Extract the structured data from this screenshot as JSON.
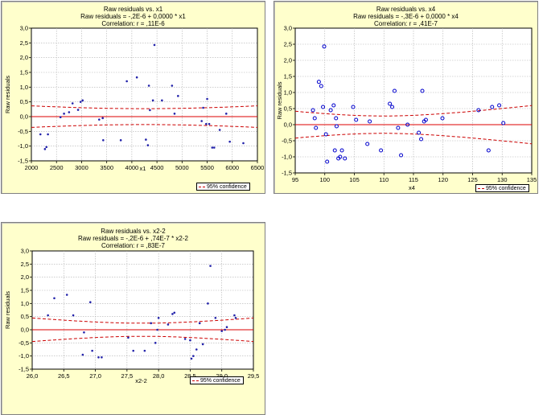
{
  "chart_data": [
    {
      "type": "scatter",
      "title": "Raw residuals vs. x1",
      "subtitle": "Raw residuals = -,2E-6 + 0,0000 * x1",
      "correlation": "Correlation: r = ,11E-6",
      "xlabel": "x1",
      "ylabel": "Raw residuals",
      "xlim": [
        2000,
        6500
      ],
      "ylim": [
        -1.5,
        3.0
      ],
      "xticks": [
        "2000",
        "2500",
        "3000",
        "3500",
        "4000",
        "4500",
        "5000",
        "5500",
        "6000",
        "6500"
      ],
      "xtick_values": [
        2000,
        2500,
        3000,
        3500,
        4000,
        4500,
        5000,
        5500,
        6000,
        6500
      ],
      "yticks": [
        "-1,5",
        "-1,0",
        "-0,5",
        "0,0",
        "0,5",
        "1,0",
        "1,5",
        "2,0",
        "2,5",
        "3,0"
      ],
      "ytick_values": [
        -1.5,
        -1.0,
        -0.5,
        0.0,
        0.5,
        1.0,
        1.5,
        2.0,
        2.5,
        3.0
      ],
      "grid": true,
      "legend": "95% confidence",
      "legend_position": "bottom-right",
      "fit": {
        "intercept": 0.0,
        "slope": 0.0
      },
      "band": {
        "x0": 4250,
        "y0": 0.27,
        "k": 1.2e-08
      },
      "points": [
        [
          2180,
          -0.6
        ],
        [
          2270,
          -1.1
        ],
        [
          2300,
          -1.03
        ],
        [
          2330,
          -0.6
        ],
        [
          2580,
          -0.02
        ],
        [
          2650,
          0.1
        ],
        [
          2750,
          0.15
        ],
        [
          2820,
          0.45
        ],
        [
          2930,
          0.23
        ],
        [
          2980,
          0.5
        ],
        [
          3020,
          0.55
        ],
        [
          3350,
          -0.1
        ],
        [
          3420,
          -0.05
        ],
        [
          3430,
          -0.8
        ],
        [
          3780,
          -0.8
        ],
        [
          3900,
          1.2
        ],
        [
          4100,
          1.33
        ],
        [
          4280,
          -0.78
        ],
        [
          4320,
          -0.97
        ],
        [
          4340,
          1.05
        ],
        [
          4360,
          0.22
        ],
        [
          4420,
          0.55
        ],
        [
          4450,
          2.43
        ],
        [
          4600,
          0.55
        ],
        [
          4800,
          1.05
        ],
        [
          4850,
          0.1
        ],
        [
          4920,
          0.7
        ],
        [
          5390,
          -0.15
        ],
        [
          5420,
          0.3
        ],
        [
          5480,
          -0.25
        ],
        [
          5500,
          0.6
        ],
        [
          5540,
          -0.25
        ],
        [
          5600,
          -1.05
        ],
        [
          5640,
          -1.05
        ],
        [
          5750,
          -0.45
        ],
        [
          5880,
          0.1
        ],
        [
          5950,
          -0.85
        ],
        [
          6220,
          -0.9
        ]
      ]
    },
    {
      "type": "scatter",
      "title": "Raw residuals vs. x4",
      "subtitle": "Raw residuals = -,3E-6 + 0,0000 * x4",
      "correlation": "Correlation: r = ,41E-7",
      "xlabel": "x4",
      "ylabel": "Raw residuals",
      "xlim": [
        95,
        135
      ],
      "ylim": [
        -1.5,
        3.0
      ],
      "xticks": [
        "95",
        "100",
        "105",
        "110",
        "115",
        "120",
        "125",
        "130",
        "135"
      ],
      "xtick_values": [
        95,
        100,
        105,
        110,
        115,
        120,
        125,
        130,
        135
      ],
      "yticks": [
        "-1,5",
        "-1,0",
        "-0,5",
        "0,0",
        "0,5",
        "1,0",
        "1,5",
        "2,0",
        "2,5",
        "3,0"
      ],
      "ytick_values": [
        -1.5,
        -1.0,
        -0.5,
        0.0,
        0.5,
        1.0,
        1.5,
        2.0,
        2.5,
        3.0
      ],
      "grid": true,
      "legend": "95% confidence",
      "legend_position": "bottom-right",
      "fit": {
        "intercept": 0.0,
        "slope": 0.0
      },
      "band": {
        "x0": 110,
        "y0": 0.27,
        "k": 0.00045
      },
      "points": [
        [
          98.0,
          0.45
        ],
        [
          98.3,
          0.2
        ],
        [
          98.5,
          -0.1
        ],
        [
          99.0,
          1.33
        ],
        [
          99.4,
          1.2
        ],
        [
          99.7,
          0.55
        ],
        [
          99.9,
          2.43
        ],
        [
          100.2,
          -0.3
        ],
        [
          100.4,
          -1.15
        ],
        [
          101.0,
          0.45
        ],
        [
          101.5,
          0.6
        ],
        [
          101.7,
          -0.8
        ],
        [
          101.9,
          0.2
        ],
        [
          102.0,
          -0.05
        ],
        [
          102.3,
          -1.05
        ],
        [
          102.6,
          -1.0
        ],
        [
          102.9,
          -0.8
        ],
        [
          103.4,
          -1.05
        ],
        [
          104.8,
          0.55
        ],
        [
          105.3,
          0.15
        ],
        [
          107.2,
          -0.6
        ],
        [
          107.6,
          0.1
        ],
        [
          109.5,
          -0.8
        ],
        [
          111.0,
          0.65
        ],
        [
          111.4,
          0.55
        ],
        [
          111.8,
          1.05
        ],
        [
          112.4,
          -0.1
        ],
        [
          112.9,
          -0.95
        ],
        [
          114.0,
          0.0
        ],
        [
          115.9,
          -0.25
        ],
        [
          116.3,
          -0.45
        ],
        [
          116.5,
          1.05
        ],
        [
          116.8,
          0.1
        ],
        [
          117.1,
          0.15
        ],
        [
          119.9,
          0.2
        ],
        [
          126.0,
          0.45
        ],
        [
          127.7,
          -0.8
        ],
        [
          128.3,
          0.55
        ],
        [
          129.5,
          0.6
        ],
        [
          130.2,
          0.05
        ]
      ]
    },
    {
      "type": "scatter",
      "title": "Raw residuals vs. x2-2",
      "subtitle": "Raw residuals = -,2E-6 + ,74E-7 * x2-2",
      "correlation": "Correlation: r = ,83E-7",
      "xlabel": "x2-2",
      "ylabel": "Raw residuals",
      "xlim": [
        26.0,
        29.5
      ],
      "ylim": [
        -1.5,
        3.0
      ],
      "xticks": [
        "26,0",
        "26,5",
        "27,0",
        "27,5",
        "28,0",
        "28,5",
        "29,0",
        "29,5"
      ],
      "xtick_values": [
        26.0,
        26.5,
        27.0,
        27.5,
        28.0,
        28.5,
        29.0,
        29.5
      ],
      "yticks": [
        "-1,5",
        "-1,0",
        "-0,5",
        "0,0",
        "0,5",
        "1,0",
        "1,5",
        "2,0",
        "2,5",
        "3,0"
      ],
      "ytick_values": [
        -1.5,
        -1.0,
        -0.5,
        0.0,
        0.5,
        1.0,
        1.5,
        2.0,
        2.5,
        3.0
      ],
      "grid": true,
      "legend": "95% confidence",
      "legend_position": "bottom-right",
      "fit": {
        "intercept": 0.0,
        "slope": 0.0
      },
      "band": {
        "x0": 27.75,
        "y0": 0.25,
        "k": 0.045
      },
      "points": [
        [
          26.25,
          0.55
        ],
        [
          26.35,
          1.2
        ],
        [
          26.55,
          1.33
        ],
        [
          26.65,
          0.55
        ],
        [
          26.8,
          -0.95
        ],
        [
          26.82,
          -0.1
        ],
        [
          26.92,
          1.05
        ],
        [
          26.95,
          -0.8
        ],
        [
          27.05,
          -1.05
        ],
        [
          27.1,
          -1.05
        ],
        [
          27.52,
          -0.3
        ],
        [
          27.6,
          -0.8
        ],
        [
          27.78,
          -0.8
        ],
        [
          27.88,
          0.25
        ],
        [
          27.95,
          -0.5
        ],
        [
          27.98,
          0.0
        ],
        [
          28.0,
          0.45
        ],
        [
          28.15,
          0.2
        ],
        [
          28.22,
          0.6
        ],
        [
          28.25,
          0.65
        ],
        [
          28.42,
          -0.35
        ],
        [
          28.5,
          -0.4
        ],
        [
          28.52,
          -1.1
        ],
        [
          28.55,
          -1.0
        ],
        [
          28.6,
          -0.75
        ],
        [
          28.65,
          0.25
        ],
        [
          28.7,
          -0.55
        ],
        [
          28.78,
          1.0
        ],
        [
          28.82,
          2.43
        ],
        [
          28.9,
          0.45
        ],
        [
          29.0,
          -0.05
        ],
        [
          29.05,
          0.0
        ],
        [
          29.08,
          0.1
        ],
        [
          29.2,
          0.55
        ],
        [
          29.22,
          0.45
        ]
      ]
    }
  ]
}
